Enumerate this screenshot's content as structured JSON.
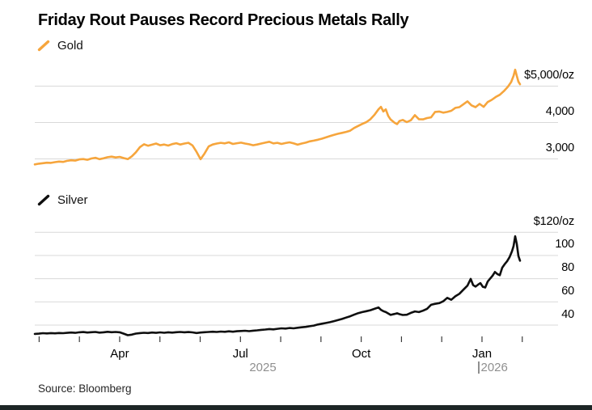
{
  "header": {
    "title": "Friday Rout Pauses Record Precious Metals Rally"
  },
  "source": {
    "text": "Source: Bloomberg"
  },
  "colors": {
    "gold_line": "#F6A53C",
    "silver_line": "#0f0f0f",
    "gridline": "#d9d9d9",
    "tick": "#3a3a3a",
    "month_text": "#000000",
    "year_text": "#8f8f8f",
    "footer_bar": "#1d2626"
  },
  "x_axis": {
    "month_labels": [
      {
        "label": "Apr",
        "month_index": 2
      },
      {
        "label": "Jul",
        "month_index": 5
      },
      {
        "label": "Oct",
        "month_index": 8
      },
      {
        "label": "Jan",
        "month_index": 11
      }
    ],
    "year_labels": [
      {
        "label": "2025"
      },
      {
        "label": "2026"
      }
    ],
    "tick_count": 13
  },
  "chart_data": [
    {
      "type": "line",
      "series_name": "Gold",
      "color": "#F6A53C",
      "unit": "USD per troy ounce",
      "x_range": "late Jan 2025 to early Feb 2026",
      "y_axis": {
        "labels": [
          "$5,000/oz",
          "4,000",
          "3,000"
        ],
        "values": [
          5000,
          4000,
          3000
        ]
      },
      "ylim": [
        2600,
        5600
      ],
      "legend_position": "top-left",
      "grid": "horizontal",
      "points": [
        [
          0.0,
          2850
        ],
        [
          0.0083,
          2868
        ],
        [
          0.0167,
          2882
        ],
        [
          0.025,
          2896
        ],
        [
          0.0333,
          2890
        ],
        [
          0.0417,
          2912
        ],
        [
          0.05,
          2926
        ],
        [
          0.0583,
          2918
        ],
        [
          0.0667,
          2946
        ],
        [
          0.075,
          2962
        ],
        [
          0.0833,
          2954
        ],
        [
          0.0917,
          2986
        ],
        [
          0.1,
          2996
        ],
        [
          0.1083,
          2976
        ],
        [
          0.1167,
          3012
        ],
        [
          0.125,
          3032
        ],
        [
          0.1333,
          2994
        ],
        [
          0.1417,
          3016
        ],
        [
          0.15,
          3046
        ],
        [
          0.1583,
          3062
        ],
        [
          0.1667,
          3040
        ],
        [
          0.175,
          3056
        ],
        [
          0.1833,
          3022
        ],
        [
          0.1917,
          2994
        ],
        [
          0.2,
          3072
        ],
        [
          0.2083,
          3182
        ],
        [
          0.2167,
          3324
        ],
        [
          0.225,
          3402
        ],
        [
          0.2333,
          3362
        ],
        [
          0.2417,
          3392
        ],
        [
          0.25,
          3422
        ],
        [
          0.2583,
          3376
        ],
        [
          0.2667,
          3396
        ],
        [
          0.275,
          3366
        ],
        [
          0.2833,
          3406
        ],
        [
          0.2917,
          3432
        ],
        [
          0.3,
          3396
        ],
        [
          0.3083,
          3422
        ],
        [
          0.3167,
          3442
        ],
        [
          0.325,
          3372
        ],
        [
          0.3333,
          3196
        ],
        [
          0.3417,
          2992
        ],
        [
          0.35,
          3152
        ],
        [
          0.3583,
          3342
        ],
        [
          0.3667,
          3396
        ],
        [
          0.375,
          3422
        ],
        [
          0.3833,
          3442
        ],
        [
          0.3917,
          3426
        ],
        [
          0.4,
          3456
        ],
        [
          0.4083,
          3412
        ],
        [
          0.4167,
          3432
        ],
        [
          0.425,
          3446
        ],
        [
          0.4333,
          3422
        ],
        [
          0.4417,
          3402
        ],
        [
          0.45,
          3376
        ],
        [
          0.4583,
          3396
        ],
        [
          0.4667,
          3422
        ],
        [
          0.475,
          3446
        ],
        [
          0.4833,
          3472
        ],
        [
          0.4917,
          3426
        ],
        [
          0.5,
          3442
        ],
        [
          0.5083,
          3412
        ],
        [
          0.5167,
          3436
        ],
        [
          0.525,
          3456
        ],
        [
          0.5333,
          3426
        ],
        [
          0.5417,
          3392
        ],
        [
          0.55,
          3422
        ],
        [
          0.5583,
          3446
        ],
        [
          0.5667,
          3482
        ],
        [
          0.575,
          3502
        ],
        [
          0.5833,
          3526
        ],
        [
          0.5917,
          3556
        ],
        [
          0.6,
          3592
        ],
        [
          0.6083,
          3626
        ],
        [
          0.6167,
          3662
        ],
        [
          0.625,
          3692
        ],
        [
          0.6333,
          3716
        ],
        [
          0.6417,
          3742
        ],
        [
          0.65,
          3776
        ],
        [
          0.6583,
          3852
        ],
        [
          0.6667,
          3906
        ],
        [
          0.675,
          3962
        ],
        [
          0.6833,
          4012
        ],
        [
          0.6917,
          4092
        ],
        [
          0.7,
          4212
        ],
        [
          0.7083,
          4362
        ],
        [
          0.7133,
          4432
        ],
        [
          0.7183,
          4302
        ],
        [
          0.7233,
          4362
        ],
        [
          0.7283,
          4182
        ],
        [
          0.7333,
          4082
        ],
        [
          0.7417,
          3992
        ],
        [
          0.7467,
          3956
        ],
        [
          0.7517,
          4042
        ],
        [
          0.7583,
          4072
        ],
        [
          0.7667,
          4012
        ],
        [
          0.775,
          4062
        ],
        [
          0.7833,
          4202
        ],
        [
          0.7917,
          4092
        ],
        [
          0.8,
          4086
        ],
        [
          0.8083,
          4122
        ],
        [
          0.8167,
          4142
        ],
        [
          0.825,
          4292
        ],
        [
          0.8333,
          4302
        ],
        [
          0.8417,
          4272
        ],
        [
          0.85,
          4292
        ],
        [
          0.8583,
          4322
        ],
        [
          0.8667,
          4402
        ],
        [
          0.875,
          4422
        ],
        [
          0.8833,
          4502
        ],
        [
          0.8917,
          4582
        ],
        [
          0.9,
          4472
        ],
        [
          0.9083,
          4422
        ],
        [
          0.9167,
          4512
        ],
        [
          0.925,
          4432
        ],
        [
          0.9333,
          4562
        ],
        [
          0.9417,
          4622
        ],
        [
          0.95,
          4702
        ],
        [
          0.9583,
          4762
        ],
        [
          0.9667,
          4862
        ],
        [
          0.975,
          4982
        ],
        [
          0.9817,
          5112
        ],
        [
          0.9867,
          5282
        ],
        [
          0.99,
          5452
        ],
        [
          0.9933,
          5282
        ],
        [
          0.9967,
          5122
        ],
        [
          1.0,
          5052
        ]
      ]
    },
    {
      "type": "line",
      "series_name": "Silver",
      "color": "#0f0f0f",
      "unit": "USD per troy ounce",
      "x_range": "late Jan 2025 to early Feb 2026",
      "y_axis": {
        "labels": [
          "$120/oz",
          "100",
          "80",
          "60",
          "40"
        ],
        "values": [
          120,
          100,
          80,
          60,
          40
        ]
      },
      "ylim": [
        25,
        130
      ],
      "legend_position": "top-left",
      "grid": "horizontal",
      "points": [
        [
          0.0,
          32.4
        ],
        [
          0.0083,
          32.6
        ],
        [
          0.0167,
          33.0
        ],
        [
          0.025,
          32.8
        ],
        [
          0.0333,
          33.1
        ],
        [
          0.0417,
          32.9
        ],
        [
          0.05,
          33.2
        ],
        [
          0.0583,
          33.0
        ],
        [
          0.0667,
          33.3
        ],
        [
          0.075,
          33.6
        ],
        [
          0.0833,
          33.3
        ],
        [
          0.0917,
          33.8
        ],
        [
          0.1,
          34.0
        ],
        [
          0.1083,
          33.6
        ],
        [
          0.1167,
          33.9
        ],
        [
          0.125,
          34.1
        ],
        [
          0.1333,
          33.5
        ],
        [
          0.1417,
          33.8
        ],
        [
          0.15,
          34.2
        ],
        [
          0.1583,
          33.9
        ],
        [
          0.1667,
          34.1
        ],
        [
          0.175,
          33.8
        ],
        [
          0.1833,
          32.6
        ],
        [
          0.1917,
          31.3
        ],
        [
          0.2,
          31.8
        ],
        [
          0.2083,
          32.7
        ],
        [
          0.2167,
          33.1
        ],
        [
          0.225,
          33.4
        ],
        [
          0.2333,
          33.2
        ],
        [
          0.2417,
          33.6
        ],
        [
          0.25,
          33.3
        ],
        [
          0.2583,
          33.7
        ],
        [
          0.2667,
          33.4
        ],
        [
          0.275,
          33.8
        ],
        [
          0.2833,
          33.5
        ],
        [
          0.2917,
          33.9
        ],
        [
          0.3,
          34.1
        ],
        [
          0.3083,
          33.8
        ],
        [
          0.3167,
          34.0
        ],
        [
          0.325,
          33.7
        ],
        [
          0.3333,
          33.2
        ],
        [
          0.3417,
          33.6
        ],
        [
          0.35,
          33.9
        ],
        [
          0.3583,
          34.1
        ],
        [
          0.3667,
          34.3
        ],
        [
          0.375,
          34.1
        ],
        [
          0.3833,
          34.4
        ],
        [
          0.3917,
          34.2
        ],
        [
          0.4,
          34.6
        ],
        [
          0.4083,
          34.3
        ],
        [
          0.4167,
          34.7
        ],
        [
          0.425,
          34.9
        ],
        [
          0.4333,
          35.1
        ],
        [
          0.4417,
          34.8
        ],
        [
          0.45,
          35.2
        ],
        [
          0.4583,
          35.5
        ],
        [
          0.4667,
          35.9
        ],
        [
          0.475,
          36.2
        ],
        [
          0.4833,
          36.6
        ],
        [
          0.4917,
          36.3
        ],
        [
          0.5,
          36.8
        ],
        [
          0.5083,
          37.2
        ],
        [
          0.5167,
          37.0
        ],
        [
          0.525,
          37.5
        ],
        [
          0.5333,
          37.2
        ],
        [
          0.5417,
          37.7
        ],
        [
          0.55,
          38.1
        ],
        [
          0.5583,
          38.5
        ],
        [
          0.5667,
          39.0
        ],
        [
          0.575,
          39.6
        ],
        [
          0.5833,
          40.5
        ],
        [
          0.5917,
          41.2
        ],
        [
          0.6,
          41.8
        ],
        [
          0.6083,
          42.5
        ],
        [
          0.6167,
          43.4
        ],
        [
          0.625,
          44.3
        ],
        [
          0.6333,
          45.3
        ],
        [
          0.6417,
          46.5
        ],
        [
          0.65,
          47.6
        ],
        [
          0.6583,
          49.0
        ],
        [
          0.6667,
          50.3
        ],
        [
          0.675,
          51.2
        ],
        [
          0.6833,
          52.0
        ],
        [
          0.6917,
          52.8
        ],
        [
          0.7,
          54.0
        ],
        [
          0.7083,
          55.2
        ],
        [
          0.7133,
          53.2
        ],
        [
          0.7183,
          52.0
        ],
        [
          0.7233,
          51.2
        ],
        [
          0.7283,
          50.0
        ],
        [
          0.7333,
          48.8
        ],
        [
          0.7417,
          49.6
        ],
        [
          0.7467,
          50.2
        ],
        [
          0.7517,
          49.4
        ],
        [
          0.7583,
          48.7
        ],
        [
          0.7667,
          48.9
        ],
        [
          0.775,
          50.5
        ],
        [
          0.7833,
          51.8
        ],
        [
          0.7917,
          51.2
        ],
        [
          0.8,
          52.4
        ],
        [
          0.8083,
          54.0
        ],
        [
          0.8167,
          57.5
        ],
        [
          0.825,
          58.3
        ],
        [
          0.8333,
          58.9
        ],
        [
          0.8417,
          60.5
        ],
        [
          0.85,
          63.5
        ],
        [
          0.8583,
          61.8
        ],
        [
          0.8667,
          64.8
        ],
        [
          0.875,
          67.0
        ],
        [
          0.8833,
          70.5
        ],
        [
          0.8917,
          74.0
        ],
        [
          0.8983,
          79.8
        ],
        [
          0.9033,
          74.5
        ],
        [
          0.9083,
          73.2
        ],
        [
          0.9133,
          74.8
        ],
        [
          0.9183,
          76.2
        ],
        [
          0.9233,
          73.0
        ],
        [
          0.9283,
          72.4
        ],
        [
          0.9333,
          77.5
        ],
        [
          0.9383,
          80.0
        ],
        [
          0.9433,
          82.5
        ],
        [
          0.9483,
          85.8
        ],
        [
          0.9533,
          84.0
        ],
        [
          0.9583,
          83.0
        ],
        [
          0.9633,
          89.5
        ],
        [
          0.9683,
          92.5
        ],
        [
          0.9733,
          95.0
        ],
        [
          0.9783,
          98.5
        ],
        [
          0.9833,
          103.5
        ],
        [
          0.9867,
          108.0
        ],
        [
          0.99,
          116.5
        ],
        [
          0.9933,
          110.0
        ],
        [
          0.9967,
          99.5
        ],
        [
          1.0,
          95.5
        ]
      ]
    }
  ]
}
